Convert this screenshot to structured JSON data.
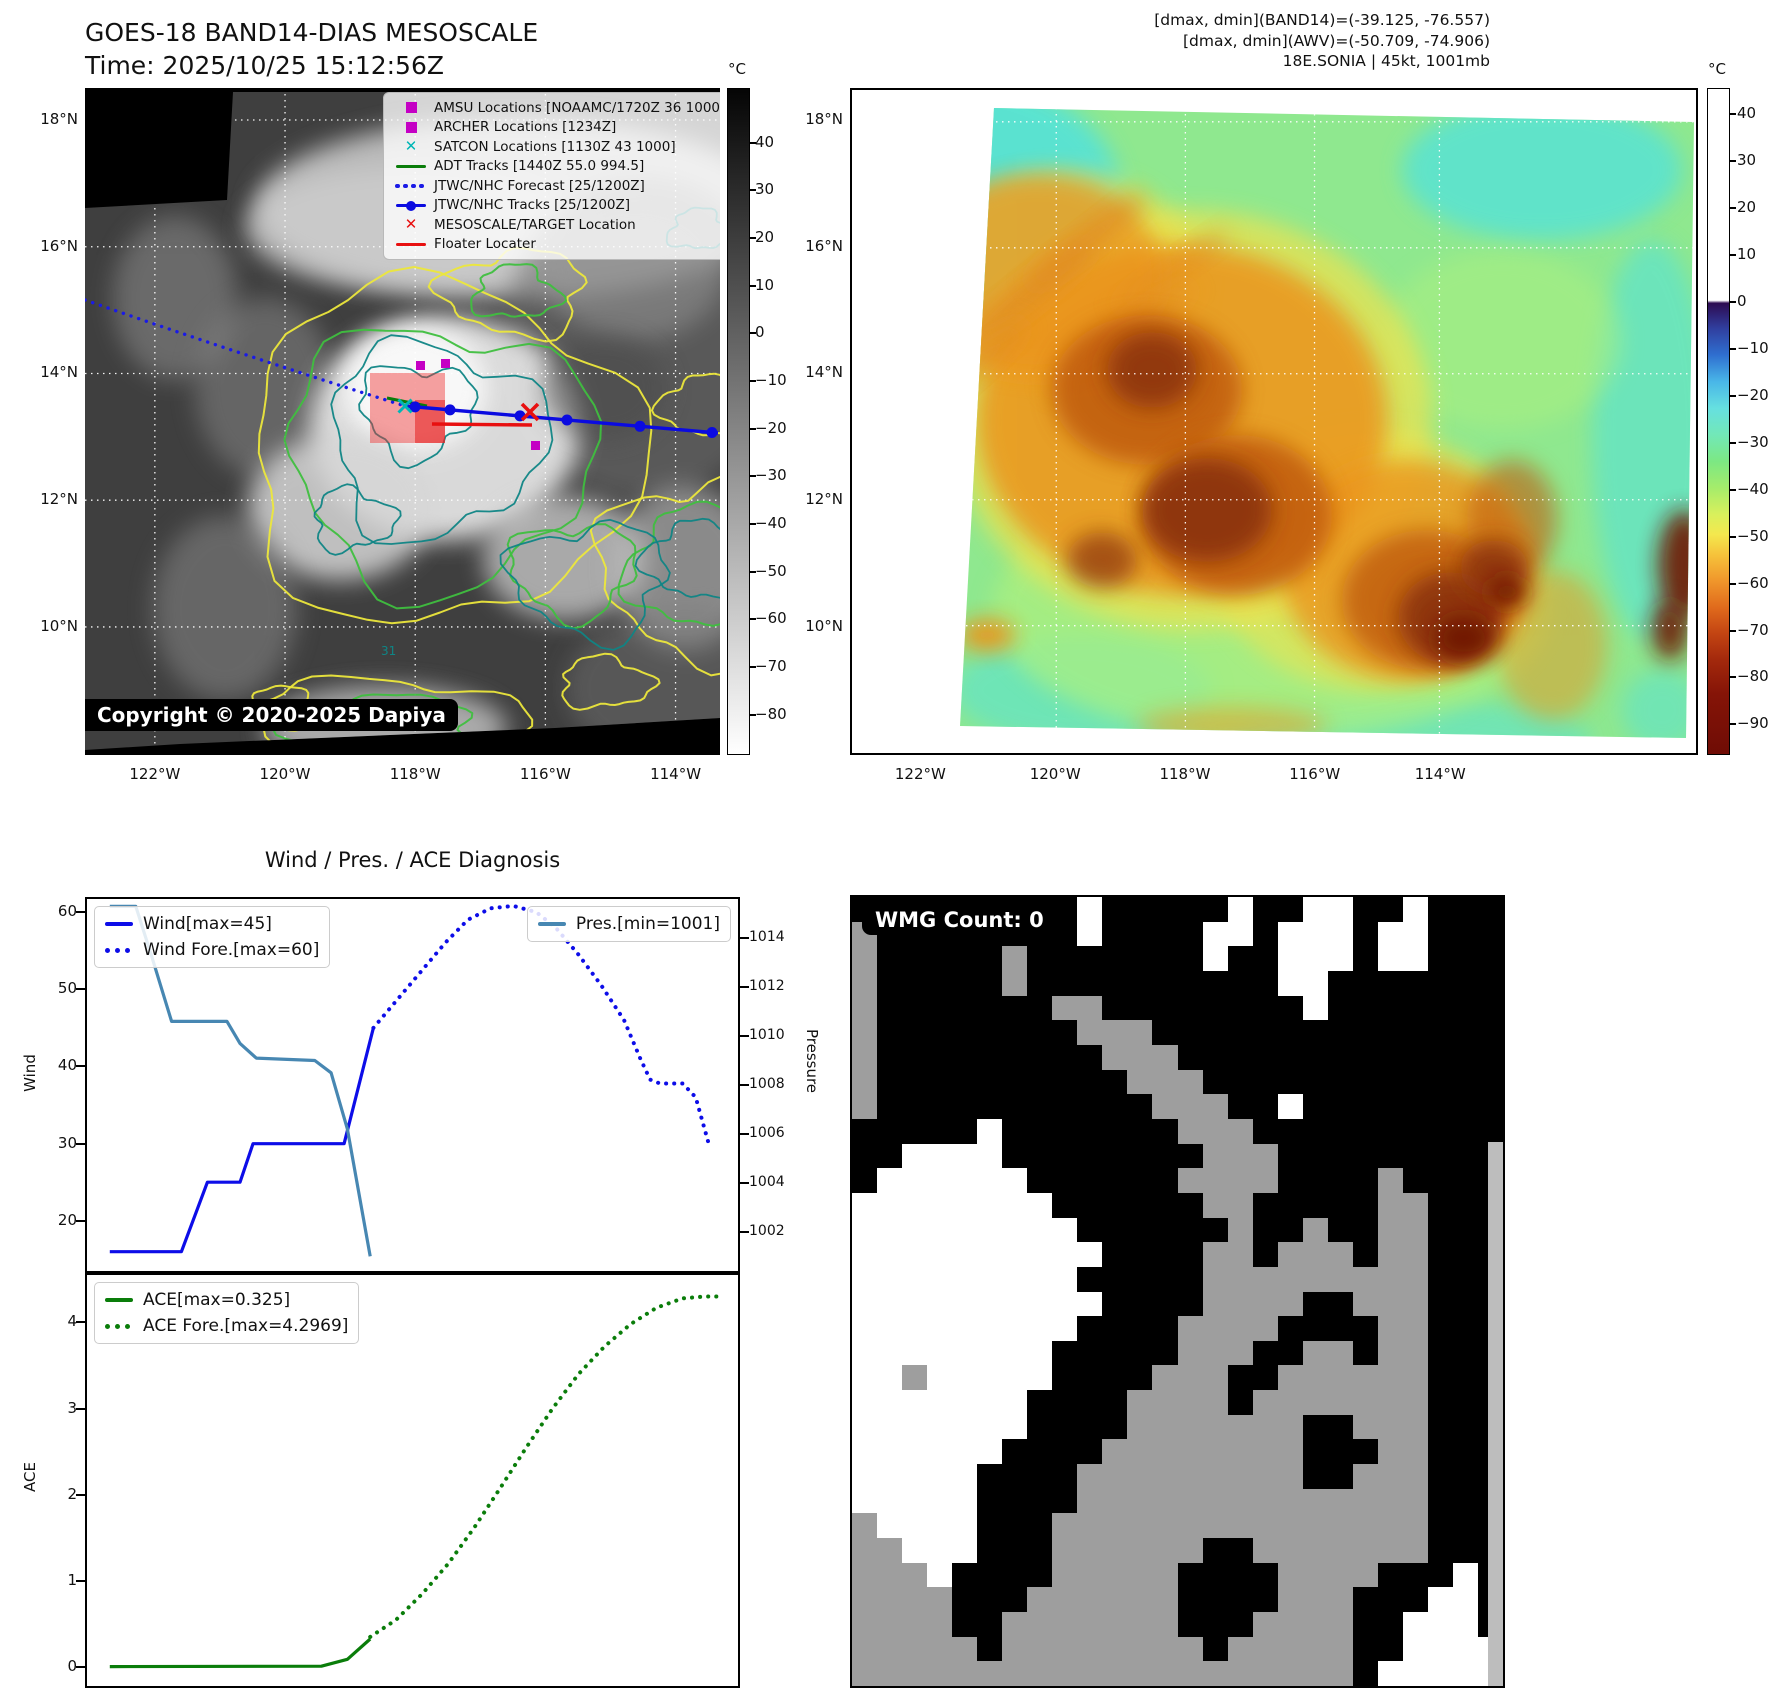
{
  "left_map": {
    "title_line1": "GOES-18 BAND14-DIAS MESOSCALE",
    "title_line2": "Time: 2025/10/25 15:12:56Z",
    "copyright": "Copyright © 2020-2025 Dapiya",
    "annotation": "31",
    "legend": [
      {
        "marker": "square",
        "color": "#c400c4",
        "label": "AMSU Locations [NOAAMC/1720Z 36 1000]"
      },
      {
        "marker": "square",
        "color": "#c400c4",
        "label": "ARCHER Locations [1234Z]"
      },
      {
        "marker": "x",
        "color": "#00b6b6",
        "label": "SATCON Locations [1130Z 43 1000]"
      },
      {
        "marker": "line",
        "color": "#0a7d0a",
        "label": "ADT Tracks [1440Z 55.0 994.5]"
      },
      {
        "marker": "dotted",
        "color": "#1a1ae6",
        "label": "JTWC/NHC Forecast [25/1200Z]"
      },
      {
        "marker": "line-dot",
        "color": "#0b0be0",
        "label": "JTWC/NHC Tracks [25/1200Z]"
      },
      {
        "marker": "x",
        "color": "#e81010",
        "label": "MESOSCALE/TARGET Location"
      },
      {
        "marker": "line",
        "color": "#e81010",
        "label": "Floater Locater"
      }
    ],
    "lat_ticks": [
      "18°N",
      "16°N",
      "14°N",
      "12°N",
      "10°N"
    ],
    "lat_fracs": [
      0.048,
      0.238,
      0.428,
      0.618,
      0.808
    ],
    "lon_ticks": [
      "122°W",
      "120°W",
      "118°W",
      "116°W",
      "114°W"
    ],
    "lon_fracs": [
      0.11,
      0.315,
      0.52,
      0.725,
      0.93
    ],
    "colorbar": {
      "unit": "°C",
      "vmax": 51.5,
      "vmin": -88.5,
      "ticks": [
        40,
        30,
        20,
        10,
        0,
        -10,
        -20,
        -30,
        -40,
        -50,
        -60,
        -70,
        -80
      ]
    }
  },
  "right_map": {
    "header_line1": "[dmax, dmin](BAND14)=(-39.125, -76.557)",
    "header_line2": "[dmax, dmin](AWV)=(-50.709, -74.906)",
    "header_line3": "18E.SONIA | 45kt, 1001mb",
    "lat_ticks": [
      "18°N",
      "16°N",
      "14°N",
      "12°N",
      "10°N"
    ],
    "lat_fracs": [
      0.048,
      0.238,
      0.428,
      0.618,
      0.808
    ],
    "lon_ticks": [
      "122°W",
      "120°W",
      "118°W",
      "116°W",
      "114°W"
    ],
    "lon_fracs": [
      0.083,
      0.242,
      0.395,
      0.548,
      0.696
    ],
    "colorbar": {
      "unit": "°C",
      "vmax": 45.5,
      "vmin": -96.5,
      "ticks": [
        40,
        30,
        20,
        10,
        0,
        -10,
        -20,
        -30,
        -40,
        -50,
        -60,
        -70,
        -80,
        -90
      ]
    }
  },
  "charts_title": "Wind / Pres. / ACE Diagnosis",
  "chart_data": [
    {
      "type": "line",
      "title": "Wind / Pres. / ACE Diagnosis",
      "xlabel": "",
      "ylabel": "Wind",
      "ylabel_right": "Pressure",
      "xlim": [
        0,
        1
      ],
      "ylim": [
        13.5,
        61.7
      ],
      "ylim_right": [
        1000.4,
        1015.6
      ],
      "yticks": [
        20,
        30,
        40,
        50,
        60
      ],
      "yticks_right": [
        1002,
        1004,
        1006,
        1008,
        1010,
        1012,
        1014
      ],
      "grid": false,
      "legend_left": [
        {
          "label": "Wind[max=45]",
          "color": "#0d0de8",
          "style": "solid"
        },
        {
          "label": "Wind Fore.[max=60]",
          "color": "#0d0de8",
          "style": "dotted"
        }
      ],
      "legend_right": [
        {
          "label": "Pres.[min=1001]",
          "color": "#4787b2",
          "style": "solid"
        }
      ],
      "series": [
        {
          "name": "Wind",
          "axis": "left",
          "style": "solid",
          "color": "#0d0de8",
          "points": [
            [
              0.035,
              16
            ],
            [
              0.145,
              16
            ],
            [
              0.185,
              25
            ],
            [
              0.235,
              25
            ],
            [
              0.255,
              30
            ],
            [
              0.395,
              30
            ],
            [
              0.44,
              45
            ]
          ]
        },
        {
          "name": "Wind Fore.",
          "axis": "left",
          "style": "dotted",
          "color": "#0d0de8",
          "points": [
            [
              0.44,
              45
            ],
            [
              0.47,
              48
            ],
            [
              0.51,
              52
            ],
            [
              0.55,
              56
            ],
            [
              0.585,
              59
            ],
            [
              0.62,
              60.5
            ],
            [
              0.655,
              60.8
            ],
            [
              0.69,
              60
            ],
            [
              0.72,
              58
            ],
            [
              0.755,
              54.5
            ],
            [
              0.79,
              50.5
            ],
            [
              0.825,
              46
            ],
            [
              0.85,
              41
            ],
            [
              0.865,
              38.3
            ],
            [
              0.88,
              37.8
            ],
            [
              0.915,
              37.8
            ],
            [
              0.935,
              36
            ],
            [
              0.955,
              30
            ]
          ]
        },
        {
          "name": "Pres.",
          "axis": "right",
          "style": "solid",
          "color": "#4787b2",
          "points": [
            [
              0.035,
              1015.3
            ],
            [
              0.075,
              1015.3
            ],
            [
              0.1,
              1013.2
            ],
            [
              0.13,
              1010.6
            ],
            [
              0.215,
              1010.6
            ],
            [
              0.235,
              1009.7
            ],
            [
              0.26,
              1009.1
            ],
            [
              0.35,
              1009.0
            ],
            [
              0.375,
              1008.5
            ],
            [
              0.4,
              1006.2
            ],
            [
              0.435,
              1001.0
            ]
          ]
        }
      ]
    },
    {
      "type": "line",
      "title": "",
      "xlabel": "",
      "ylabel": "ACE",
      "xlim": [
        0,
        1
      ],
      "ylim": [
        -0.22,
        4.55
      ],
      "yticks": [
        0,
        1,
        2,
        3,
        4
      ],
      "grid": false,
      "legend_left": [
        {
          "label": "ACE[max=0.325]",
          "color": "#0a7d0a",
          "style": "solid"
        },
        {
          "label": "ACE Fore.[max=4.2969]",
          "color": "#0a7d0a",
          "style": "dotted"
        }
      ],
      "legend_right": [],
      "series": [
        {
          "name": "ACE",
          "axis": "left",
          "style": "solid",
          "color": "#0a7d0a",
          "points": [
            [
              0.035,
              0.005
            ],
            [
              0.36,
              0.01
            ],
            [
              0.4,
              0.09
            ],
            [
              0.435,
              0.325
            ]
          ]
        },
        {
          "name": "ACE Fore.",
          "axis": "left",
          "style": "dotted",
          "color": "#0a7d0a",
          "points": [
            [
              0.435,
              0.35
            ],
            [
              0.475,
              0.55
            ],
            [
              0.515,
              0.85
            ],
            [
              0.555,
              1.2
            ],
            [
              0.595,
              1.62
            ],
            [
              0.635,
              2.08
            ],
            [
              0.675,
              2.55
            ],
            [
              0.715,
              3.0
            ],
            [
              0.755,
              3.4
            ],
            [
              0.795,
              3.72
            ],
            [
              0.835,
              3.98
            ],
            [
              0.875,
              4.17
            ],
            [
              0.915,
              4.28
            ],
            [
              0.95,
              4.3
            ],
            [
              0.97,
              4.3
            ]
          ]
        }
      ]
    }
  ],
  "wmg": {
    "count_label": "WMG Count: 0",
    "colors": {
      ".": "#000000",
      "W": "#ffffff",
      "G": "#9e9e9e"
    },
    "grid": [
      ".........W.....W..WW..W...",
      "G........W....WW.WWW.WW...",
      "G.....G.......W..WWW.WW...",
      "G.....G..........WW.......",
      "G.......GG........W.......",
      "G........GGG..............",
      "G.........GGG.............",
      "G..........GGG............",
      "G...........GGG..W........",
      ".....W.......GGG..........",
      "..WWWW........GGG.........",
      ".WWWWWW......GGGG....G....",
      "WWWWWWWW......GG.....GG...",
      "WWWWWWWWW......G..G..GG...",
      "WWWWWWWWWW....GG.GGG.GG...",
      "WWWWWWWWW.....GGGGGGGGG...",
      "WWWWWWWWWW....GGGG..GGG...",
      "WWWWWWWWW....GGGG....GG...",
      "WWWWWWWW.....GGG..GG.GG...",
      "WWGWWWWW....GGG..GGGGGG...",
      "WWWWWWW....GGGG.GGGGGGG...",
      "WWWWWWW....GGGGGGG..GGG...",
      "WWWWWW....GGGGGGGG...GG...",
      "WWWWW....GGGGGGGGG..GGG...",
      "WWWWW....GGGGGGGGGGGGGG...",
      "GWWWW...GGGGGGGGGGGGGGG...",
      "GGWWW...GGGGGG..GGGGGGG...",
      "GGGW....GGGGG....GGGG...W.",
      "GGGG...GGGGGG....GGG...WW.",
      "GGGG..GGGGGGG...GGGG..WWW.",
      "GGGGG.GGGGGGGG.GGGGG..WWWW",
      "GGGGGGGGGGGGGGGGGGGG.WWWWW"
    ]
  }
}
